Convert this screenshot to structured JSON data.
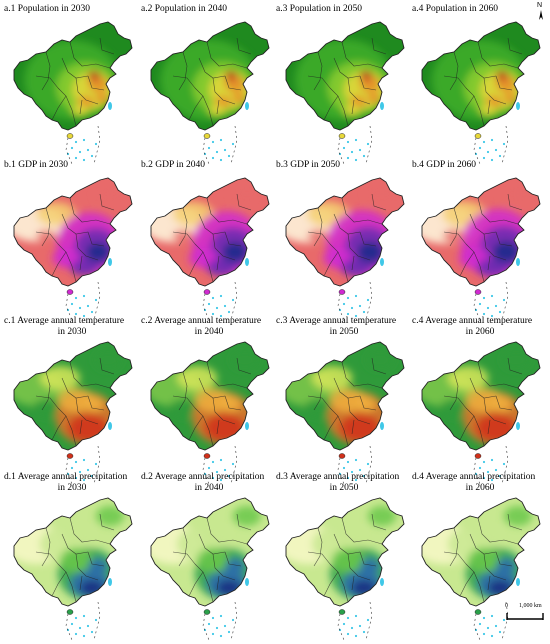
{
  "panels": [
    {
      "id": "a1",
      "line1": "a.1  Population in 2030",
      "line2": "",
      "theme": "population",
      "intensity": 0.55
    },
    {
      "id": "a2",
      "line1": "a.2  Population in 2040",
      "line2": "",
      "theme": "population",
      "intensity": 0.6
    },
    {
      "id": "a3",
      "line1": "a.3  Population in 2050",
      "line2": "",
      "theme": "population",
      "intensity": 0.62
    },
    {
      "id": "a4",
      "line1": "a.4  Population in 2060",
      "line2": "",
      "theme": "population",
      "intensity": 0.58
    },
    {
      "id": "b1",
      "line1": "b.1 GDP in 2030",
      "line2": "",
      "theme": "gdp",
      "intensity": 0.55
    },
    {
      "id": "b2",
      "line1": "b.2 GDP in 2040",
      "line2": "",
      "theme": "gdp",
      "intensity": 0.65
    },
    {
      "id": "b3",
      "line1": "b.3 GDP in 2050",
      "line2": "",
      "theme": "gdp",
      "intensity": 0.75
    },
    {
      "id": "b4",
      "line1": "b.4 GDP in 2060",
      "line2": "",
      "theme": "gdp",
      "intensity": 0.85
    },
    {
      "id": "c1",
      "line1": "c.1 Average annual temperature",
      "line2": "in 2030",
      "theme": "temperature",
      "intensity": 0.6
    },
    {
      "id": "c2",
      "line1": "c.2 Average annual temperature",
      "line2": "in 2040",
      "theme": "temperature",
      "intensity": 0.62
    },
    {
      "id": "c3",
      "line1": "c.3 Average annual temperature",
      "line2": "in 2050",
      "theme": "temperature",
      "intensity": 0.64
    },
    {
      "id": "c4",
      "line1": "c.4 Average annual temperature",
      "line2": "in 2060",
      "theme": "temperature",
      "intensity": 0.66
    },
    {
      "id": "d1",
      "line1": "d.1 Average annual precipitation",
      "line2": "in 2030",
      "theme": "precipitation",
      "intensity": 0.6
    },
    {
      "id": "d2",
      "line1": "d.2 Average annual precipitation",
      "line2": "in 2040",
      "theme": "precipitation",
      "intensity": 0.6
    },
    {
      "id": "d3",
      "line1": "d.3 Average annual precipitation",
      "line2": "in 2050",
      "theme": "precipitation",
      "intensity": 0.6
    },
    {
      "id": "d4",
      "line1": "d.4 Average annual precipitation",
      "line2": "in 2060",
      "theme": "precipitation",
      "intensity": 0.6
    }
  ],
  "north_arrow": {
    "letter": "N"
  },
  "scale_bar": {
    "zero": "0",
    "label": "1,000  km"
  },
  "colors": {
    "population": [
      "#1f8a1f",
      "#3fae2a",
      "#8fcf2f",
      "#e8d83a",
      "#e88a2a",
      "#c0301e"
    ],
    "gdp": [
      "#fffbe0",
      "#f4d070",
      "#e86a6a",
      "#d02ad0",
      "#6a2ab0",
      "#1a2a8a"
    ],
    "temperature": [
      "#2f9a3a",
      "#7fc84a",
      "#d8e85a",
      "#f0b040",
      "#e8702a",
      "#d0301a"
    ],
    "precipitation": [
      "#f8f8c8",
      "#c8e890",
      "#6ac84a",
      "#2aa04a",
      "#2a6ab0",
      "#1a2a80"
    ],
    "border": "#222222",
    "islands": "#40c8e8"
  }
}
